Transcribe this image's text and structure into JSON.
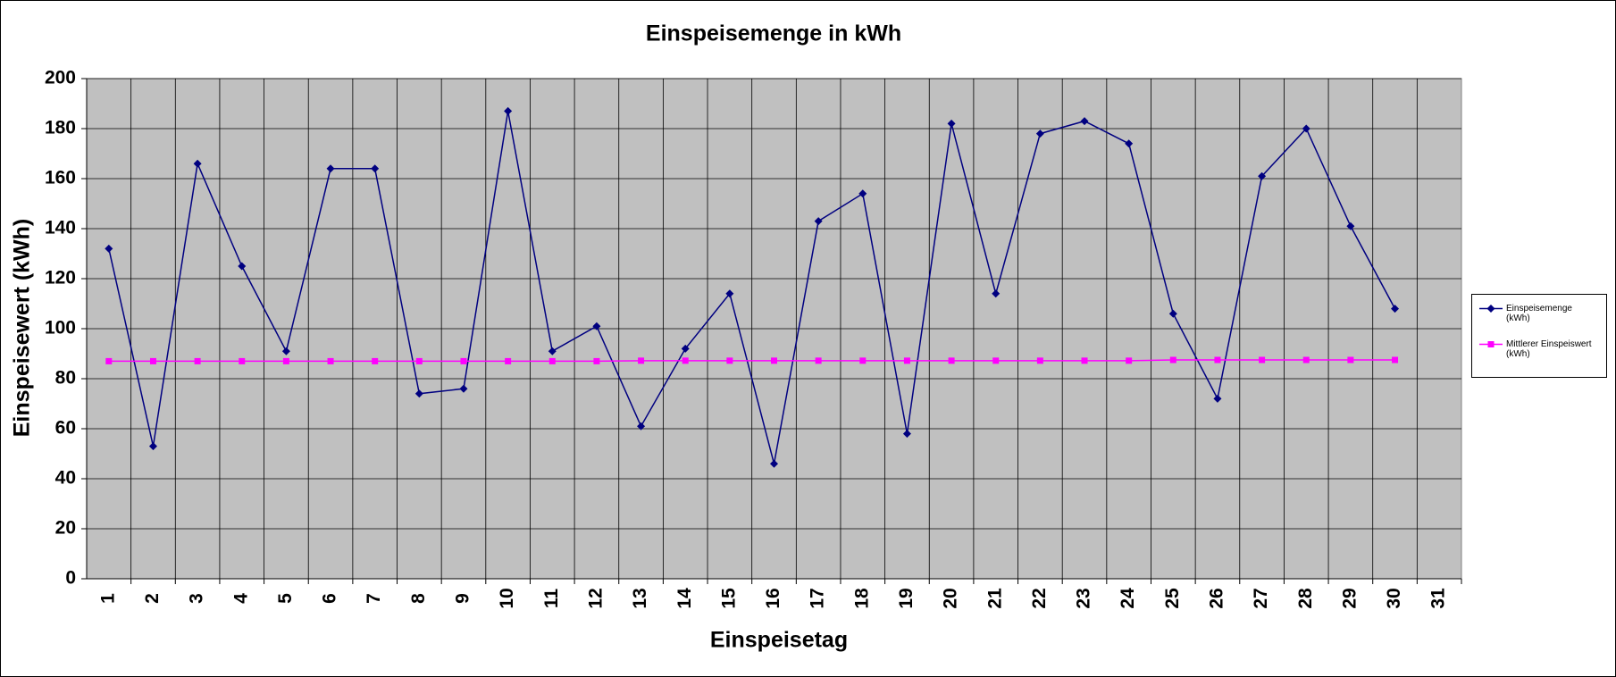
{
  "chart_data": {
    "type": "line",
    "title": "Einspeisemenge in kWh",
    "x_label": "Einspeisetag",
    "y_label": "Einspeisewert  (kWh)",
    "categories": [
      "1",
      "2",
      "3",
      "4",
      "5",
      "6",
      "7",
      "8",
      "9",
      "10",
      "11",
      "12",
      "13",
      "14",
      "15",
      "16",
      "17",
      "18",
      "19",
      "20",
      "21",
      "22",
      "23",
      "24",
      "25",
      "26",
      "27",
      "28",
      "29",
      "30",
      "31"
    ],
    "series": [
      {
        "name": "Einspeisemenge (kWh)",
        "color": "#000080",
        "marker": "diamond",
        "values": [
          132,
          53,
          166,
          125,
          91,
          164,
          164,
          74,
          76,
          187,
          91,
          101,
          61,
          92,
          114,
          46,
          143,
          154,
          58,
          182,
          114,
          178,
          183,
          174,
          106,
          72,
          161,
          180,
          141,
          108,
          null
        ]
      },
      {
        "name": "Mittlerer Einspeiswert (kWh)",
        "color": "#ff00ff",
        "marker": "square",
        "values": [
          87,
          87,
          87,
          87,
          87,
          87,
          87,
          87,
          87,
          87,
          87,
          87,
          87.2,
          87.2,
          87.2,
          87.2,
          87.2,
          87.2,
          87.2,
          87.2,
          87.2,
          87.2,
          87.2,
          87.2,
          87.5,
          87.5,
          87.5,
          87.5,
          87.5,
          87.5,
          null
        ]
      }
    ],
    "ylim": [
      0,
      200
    ],
    "yticks": [
      0,
      20,
      40,
      60,
      80,
      100,
      120,
      140,
      160,
      180,
      200
    ],
    "grid": true,
    "legend": "right",
    "plot_background": "#c0c0c0"
  }
}
